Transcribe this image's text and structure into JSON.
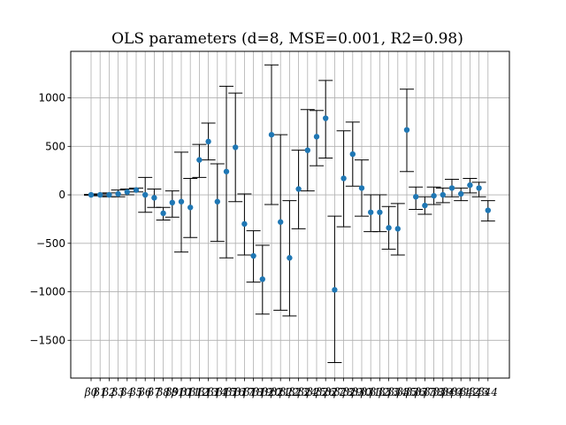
{
  "chart_data": {
    "type": "errorbar",
    "title": "OLS parameters (d=8, MSE=0.001, R2=0.98)",
    "xlabel": "",
    "ylabel": "",
    "ylim": [
      -1890,
      1480
    ],
    "yticks": [
      -1500,
      -1000,
      -500,
      0,
      500,
      1000
    ],
    "ytick_labels": [
      "−1500",
      "−1000",
      "−500",
      "0",
      "500",
      "1000"
    ],
    "grid": true,
    "marker_color": "#1f77b4",
    "errorbar_color": "#000000",
    "categories": [
      "β0",
      "β1",
      "β2",
      "β3",
      "β4",
      "β5",
      "β6",
      "β7",
      "β8",
      "β9",
      "β10",
      "β11",
      "β12",
      "β13",
      "β14",
      "β15",
      "β16",
      "β17",
      "β18",
      "β19",
      "β20",
      "β21",
      "β22",
      "β23",
      "β24",
      "β25",
      "β26",
      "β27",
      "β28",
      "β29",
      "β30",
      "β31",
      "β32",
      "β33",
      "β34",
      "β35",
      "β36",
      "β37",
      "β38",
      "β39",
      "β40",
      "β41",
      "β42",
      "β43",
      "β44"
    ],
    "series": [
      {
        "values": [
          0,
          0,
          0,
          10,
          30,
          50,
          0,
          -30,
          -190,
          -80,
          -70,
          -130,
          360,
          550,
          -70,
          240,
          490,
          -300,
          -630,
          -870,
          620,
          -280,
          -650,
          60,
          460,
          600,
          790,
          -980,
          170,
          420,
          70,
          -180,
          -180,
          -340,
          -350,
          670,
          -20,
          -110,
          -10,
          0,
          70,
          10,
          100,
          70,
          -160
        ],
        "lower": [
          -5,
          -10,
          -20,
          -20,
          0,
          30,
          -180,
          -130,
          -260,
          -230,
          -590,
          -440,
          180,
          360,
          -480,
          -650,
          -70,
          -620,
          -900,
          -1230,
          -100,
          -1190,
          -1250,
          -350,
          40,
          300,
          380,
          -1730,
          -330,
          90,
          -220,
          -380,
          -380,
          -560,
          -620,
          240,
          -150,
          -200,
          -100,
          -80,
          -20,
          -60,
          20,
          -20,
          -270
        ],
        "upper": [
          5,
          10,
          20,
          50,
          60,
          70,
          180,
          60,
          -130,
          40,
          440,
          170,
          520,
          740,
          320,
          1120,
          1050,
          10,
          -370,
          -520,
          1340,
          620,
          -60,
          460,
          880,
          870,
          1180,
          -220,
          660,
          750,
          360,
          0,
          0,
          -120,
          -90,
          1090,
          80,
          -20,
          80,
          70,
          160,
          70,
          170,
          130,
          -60
        ]
      }
    ]
  }
}
